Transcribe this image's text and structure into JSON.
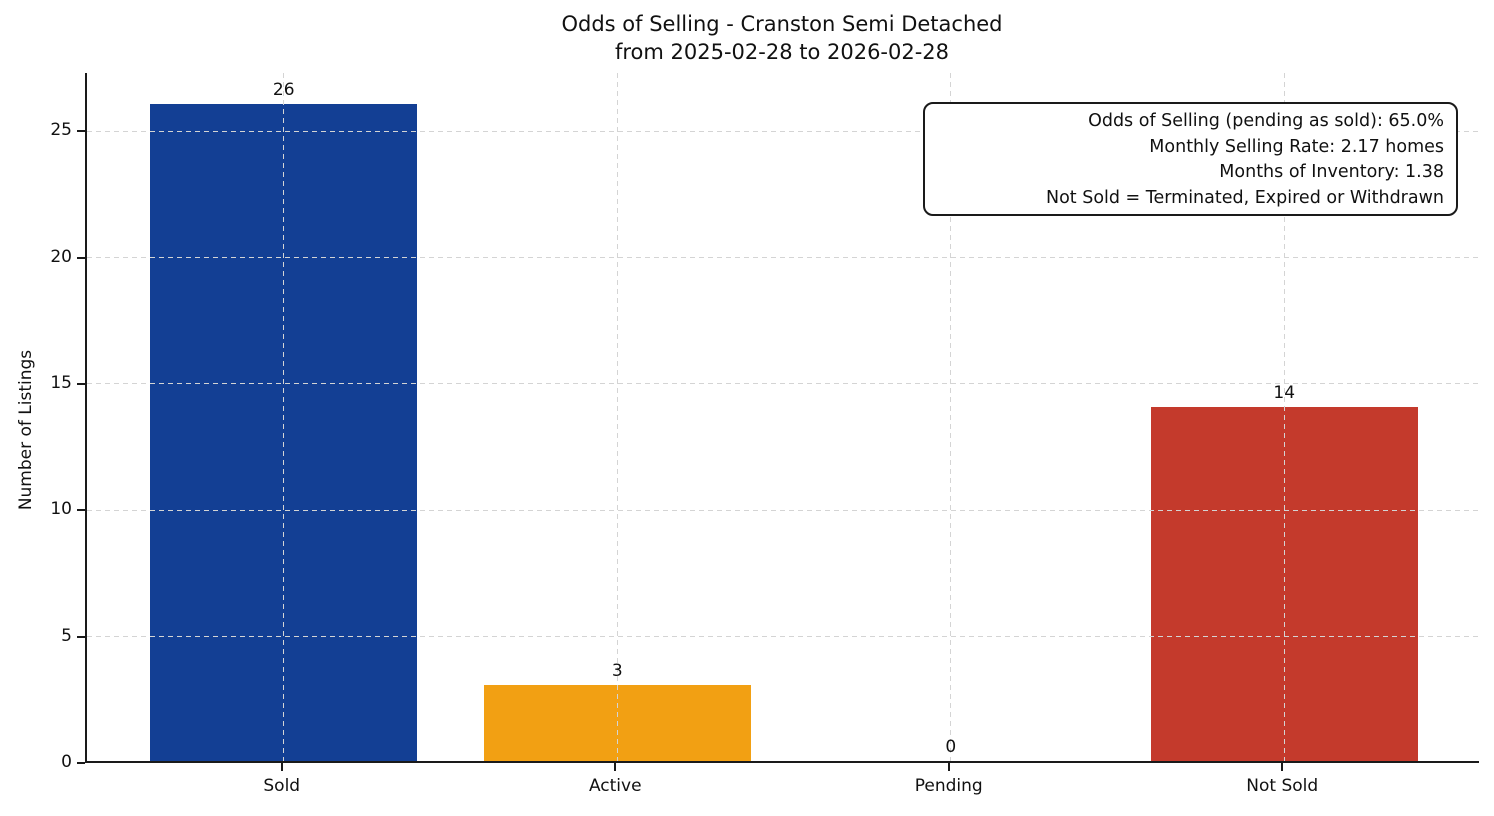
{
  "title": {
    "line1": "Odds of Selling - Cranston Semi Detached",
    "line2": "from 2025-02-28 to 2026-02-28"
  },
  "annotation_box": {
    "lines": [
      "Odds of Selling (pending as sold): 65.0%",
      "Monthly Selling Rate: 2.17 homes",
      "Months of Inventory: 1.38",
      "Not Sold = Terminated, Expired or Withdrawn"
    ]
  },
  "chart_data": {
    "type": "bar",
    "title": "Odds of Selling - Cranston Semi Detached\nfrom 2025-02-28 to 2026-02-28",
    "categories": [
      "Sold",
      "Active",
      "Pending",
      "Not Sold"
    ],
    "values": [
      26,
      3,
      0,
      14
    ],
    "value_labels": [
      "26",
      "3",
      "0",
      "14"
    ],
    "bar_colors": [
      "#133f94",
      "#f2a013",
      "#9e9e9e",
      "#c43a2c"
    ],
    "xlabel": "",
    "ylabel": "Number of Listings",
    "yticks": [
      0,
      5,
      10,
      15,
      20,
      25
    ],
    "ylim": [
      0,
      27.3
    ],
    "xlim": [
      -0.59,
      3.59
    ],
    "bar_width": 0.8,
    "grid": true,
    "grid_style": "dashed",
    "legend": "none",
    "annotations": [
      "Odds of Selling (pending as sold): 65.0%",
      "Monthly Selling Rate: 2.17 homes",
      "Months of Inventory: 1.38",
      "Not Sold = Terminated, Expired or Withdrawn"
    ],
    "annotation_position": "top-right"
  },
  "colors": {
    "sold_bar": "#133f94",
    "active_bar": "#f2a013",
    "not_sold_bar": "#c43a2c",
    "grid": "#d4d4d4",
    "axis": "#1a1a1a",
    "text": "#111111",
    "background": "#ffffff"
  }
}
